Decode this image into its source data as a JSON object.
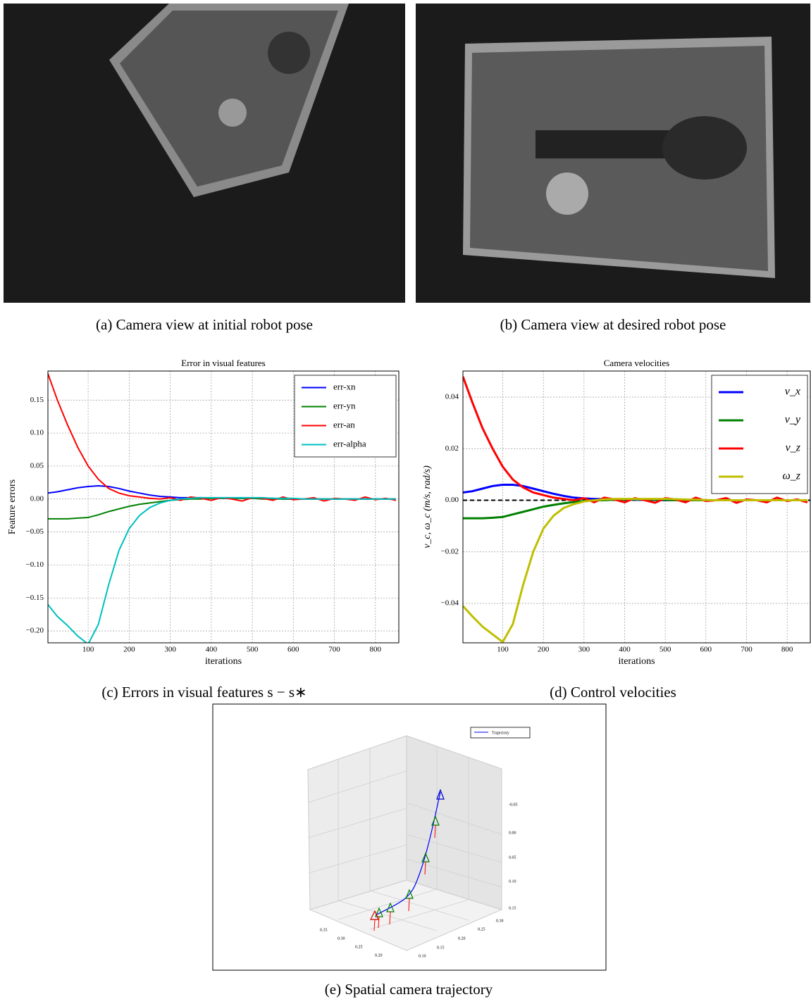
{
  "captions": [
    "(a) Camera view at initial robot pose",
    "(b) Camera view at desired robot pose",
    "(c) Errors in visual features s − s∗",
    "(d) Control velocities",
    "(e) Spatial camera trajectory"
  ],
  "chart_data": [
    {
      "type": "line",
      "title": "Error in visual features",
      "x_label": "iterations",
      "y_label": "Feature errors",
      "x": [
        2,
        25,
        50,
        75,
        100,
        125,
        150,
        175,
        200,
        225,
        250,
        275,
        300,
        325,
        350,
        375,
        400,
        425,
        450,
        475,
        500,
        525,
        550,
        575,
        600,
        625,
        650,
        675,
        700,
        725,
        750,
        775,
        800,
        825,
        850
      ],
      "series": [
        {
          "name": "err-xn",
          "color": "#0000ff",
          "values": [
            0.009,
            0.011,
            0.014,
            0.017,
            0.019,
            0.02,
            0.019,
            0.016,
            0.012,
            0.009,
            0.006,
            0.004,
            0.003,
            0.002,
            0.002,
            0.002,
            0.001,
            0.001,
            0.001,
            0.001,
            0.001,
            0.001,
            0.001,
            0.0,
            0.0,
            0.0,
            0.0,
            0.0,
            0.0,
            0.0,
            0.0,
            0.0,
            0.0,
            0.0,
            0.0
          ]
        },
        {
          "name": "err-yn",
          "color": "#008000",
          "values": [
            -0.03,
            -0.03,
            -0.03,
            -0.029,
            -0.028,
            -0.024,
            -0.019,
            -0.015,
            -0.011,
            -0.008,
            -0.006,
            -0.004,
            -0.002,
            -0.001,
            0.0,
            0.0,
            0.001,
            0.001,
            0.001,
            0.001,
            0.001,
            0.0,
            0.0,
            0.0,
            0.0,
            0.0,
            0.0,
            0.0,
            0.0,
            0.0,
            0.0,
            0.0,
            0.0,
            0.0,
            0.0
          ]
        },
        {
          "name": "err-an",
          "color": "#ff0000",
          "values": [
            0.19,
            0.15,
            0.112,
            0.078,
            0.05,
            0.03,
            0.016,
            0.009,
            0.005,
            0.003,
            0.001,
            0.0,
            0.002,
            -0.002,
            0.003,
            0.001,
            -0.002,
            0.002,
            0.0,
            -0.003,
            0.002,
            0.001,
            -0.002,
            0.003,
            -0.001,
            0.0,
            0.002,
            -0.003,
            0.001,
            0.0,
            -0.002,
            0.003,
            -0.001,
            0.001,
            -0.002
          ]
        },
        {
          "name": "err-alpha",
          "color": "#00bfbf",
          "values": [
            -0.16,
            -0.178,
            -0.192,
            -0.208,
            -0.22,
            -0.19,
            -0.13,
            -0.078,
            -0.045,
            -0.025,
            -0.013,
            -0.006,
            -0.002,
            0.0,
            0.001,
            0.002,
            0.002,
            0.002,
            0.002,
            0.002,
            0.002,
            0.002,
            0.001,
            0.001,
            0.001,
            0.0,
            0.0,
            0.0,
            0.0,
            0.0,
            0.0,
            0.0,
            0.0,
            0.0,
            0.0
          ]
        }
      ],
      "xlim": [
        2,
        857
      ],
      "ylim": [
        -0.218,
        0.194
      ],
      "xticks": [
        100,
        200,
        300,
        400,
        500,
        600,
        700,
        800
      ],
      "yticks": [
        0.15,
        {
          "value": 0.1,
          "label": "0.10"
        },
        0.05,
        {
          "value": 0,
          "label": "0.00"
        },
        {
          "value": -0.05,
          "label": "−0.05"
        },
        {
          "value": -0.1,
          "label": "−0.10"
        },
        {
          "value": -0.15,
          "label": "−0.15"
        },
        {
          "value": -0.2,
          "label": "−0.20"
        }
      ],
      "grid": true,
      "legend": "upper right"
    },
    {
      "type": "line",
      "title": "Camera velocities",
      "x_label": "iterations",
      "y_label": "v_c, ω_c (m/s, rad/s)",
      "x": [
        2,
        25,
        50,
        75,
        100,
        125,
        150,
        175,
        200,
        225,
        250,
        275,
        300,
        325,
        350,
        375,
        400,
        425,
        450,
        475,
        500,
        525,
        550,
        575,
        600,
        625,
        650,
        675,
        700,
        725,
        750,
        775,
        800,
        825,
        850
      ],
      "series": [
        {
          "name": "v_x",
          "color": "#0000ff",
          "values": [
            0.003,
            0.0035,
            0.0045,
            0.0055,
            0.006,
            0.006,
            0.0055,
            0.0045,
            0.0035,
            0.0025,
            0.0017,
            0.001,
            0.0007,
            0.0005,
            0.0004,
            0.0003,
            0.0002,
            0.0002,
            0.0001,
            0.0001,
            0.0,
            0.0,
            0.0,
            0.0,
            0.0,
            0.0,
            0.0,
            0.0,
            0.0,
            0.0,
            0.0,
            0.0,
            0.0,
            0.0,
            0.0
          ]
        },
        {
          "name": "v_y",
          "color": "#008000",
          "values": [
            -0.007,
            -0.007,
            -0.007,
            -0.0068,
            -0.0065,
            -0.0055,
            -0.0045,
            -0.0035,
            -0.0025,
            -0.0018,
            -0.0012,
            -0.0007,
            -0.0003,
            -0.0001,
            0.0,
            0.0002,
            0.0003,
            0.0003,
            0.0002,
            0.0002,
            0.0001,
            0.0,
            0.0,
            0.0,
            0.0,
            0.0,
            0.0,
            0.0,
            0.0,
            0.0,
            0.0,
            0.0,
            0.0,
            0.0,
            0.0
          ]
        },
        {
          "name": "v_z",
          "color": "#ff0000",
          "values": [
            0.048,
            0.038,
            0.028,
            0.02,
            0.013,
            0.008,
            0.005,
            0.003,
            0.002,
            0.001,
            0.0005,
            0.0,
            0.0008,
            -0.0008,
            0.001,
            0.0003,
            -0.0008,
            0.0008,
            0.0,
            -0.001,
            0.0008,
            0.0003,
            -0.0008,
            0.001,
            -0.0003,
            0.0,
            0.0008,
            -0.001,
            0.0003,
            0.0,
            -0.0008,
            0.001,
            -0.0003,
            0.0003,
            -0.0008
          ]
        },
        {
          "name": "ω_z",
          "color": "#bfbf00",
          "values": [
            -0.041,
            -0.045,
            -0.049,
            -0.052,
            -0.055,
            -0.048,
            -0.033,
            -0.02,
            -0.011,
            -0.006,
            -0.003,
            -0.0015,
            -0.0005,
            0.0,
            0.0003,
            0.0005,
            0.0005,
            0.0005,
            0.0005,
            0.0005,
            0.0005,
            0.0004,
            0.0003,
            0.0002,
            0.0001,
            0.0,
            0.0,
            0.0,
            0.0,
            0.0,
            0.0,
            0.0,
            0.0,
            0.0,
            0.0
          ]
        }
      ],
      "xlim": [
        2,
        857
      ],
      "ylim": [
        -0.0553,
        0.0501
      ],
      "xticks": [
        100,
        200,
        300,
        400,
        500,
        600,
        700,
        800
      ],
      "yticks": [
        0.04,
        0.02,
        {
          "value": 0,
          "label": "0.00"
        },
        {
          "value": -0.02,
          "label": "−0.02"
        },
        {
          "value": -0.04,
          "label": "−0.04"
        }
      ],
      "hline": 0,
      "grid": true,
      "legend": "upper right"
    }
  ],
  "panel_e": {
    "legend": "Trajectory",
    "z_tick_labels": [
      "-0.05",
      "0.00",
      "0.05",
      "0.10",
      "0.15"
    ],
    "x_tick_labels": [
      "0.35",
      "0.30",
      "0.25",
      "0.20"
    ],
    "y_tick_labels": [
      "0.10",
      "0.15",
      "0.20",
      "0.25",
      "0.30"
    ]
  }
}
